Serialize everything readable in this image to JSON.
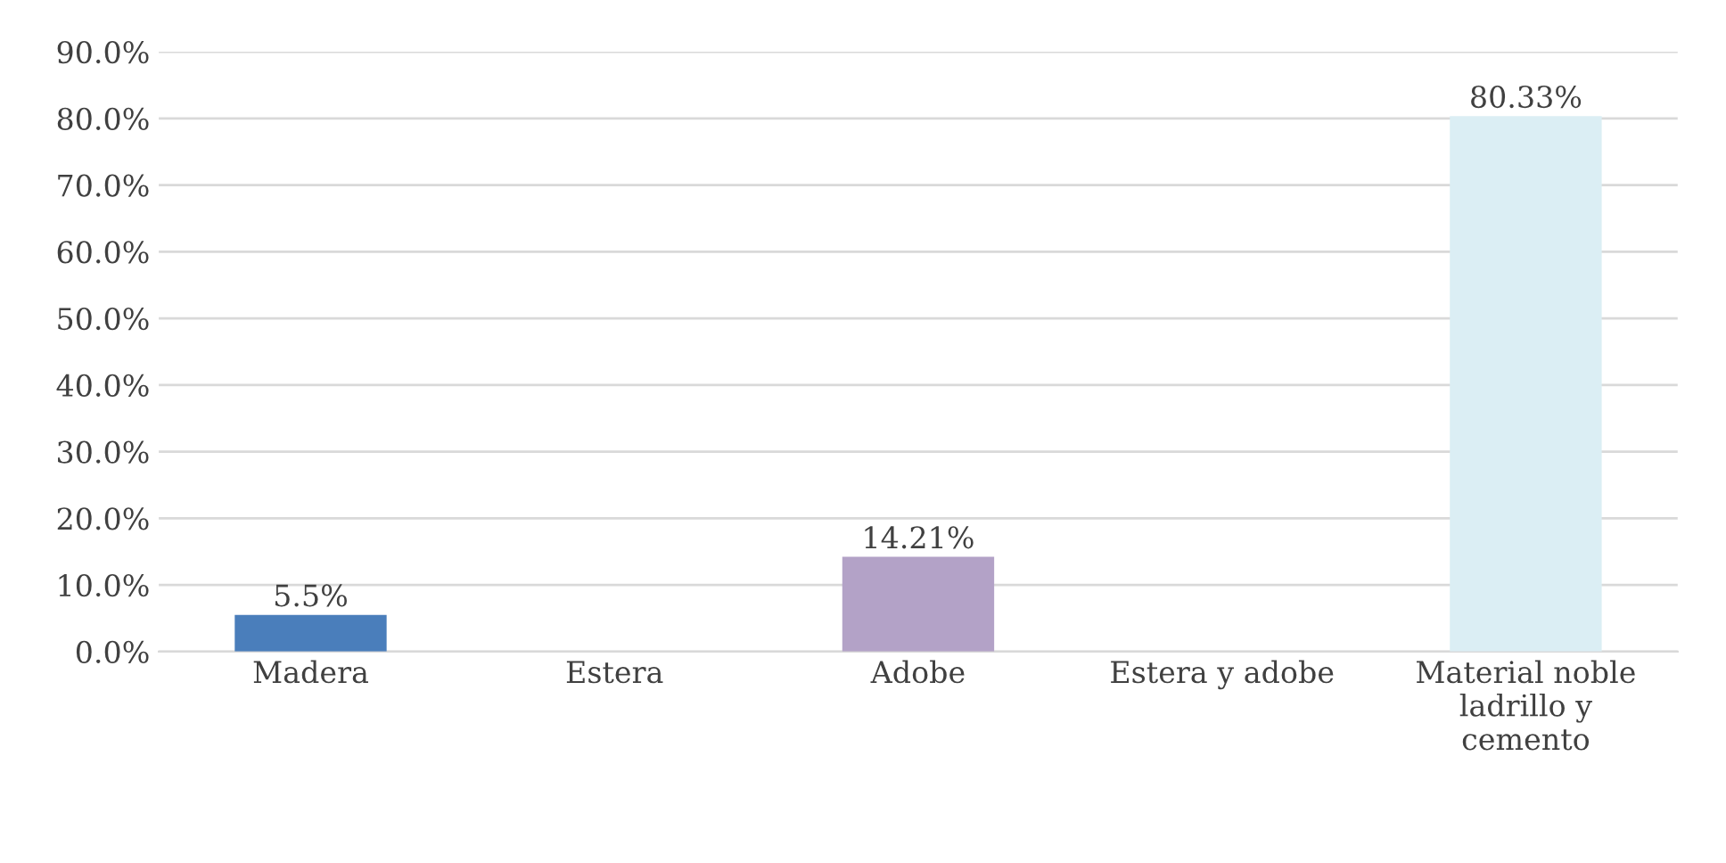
{
  "chart_data": {
    "type": "bar",
    "categories": [
      "Madera",
      "Estera",
      "Adobe",
      "Estera y adobe",
      "Material noble ladrillo y cemento"
    ],
    "values": [
      5.5,
      0,
      14.21,
      0,
      80.33
    ],
    "value_labels": [
      "5.5%",
      null,
      "14.21%",
      null,
      "80.33%"
    ],
    "colors": [
      "#4a7ebb",
      "#c0504d",
      "#b3a2c7",
      "#9bbb59",
      "#dbeef4"
    ],
    "ylim": [
      0,
      90
    ],
    "yticks": [
      {
        "value": 0,
        "label": "0.0%"
      },
      {
        "value": 10,
        "label": "10.0%"
      },
      {
        "value": 20,
        "label": "20.0%"
      },
      {
        "value": 30,
        "label": "30.0%"
      },
      {
        "value": 40,
        "label": "40.0%"
      },
      {
        "value": 50,
        "label": "50.0%"
      },
      {
        "value": 60,
        "label": "60.0%"
      },
      {
        "value": 70,
        "label": "70.0%"
      },
      {
        "value": 80,
        "label": "80.0%"
      },
      {
        "value": 90,
        "label": "90.0%"
      }
    ],
    "grid": "y"
  }
}
